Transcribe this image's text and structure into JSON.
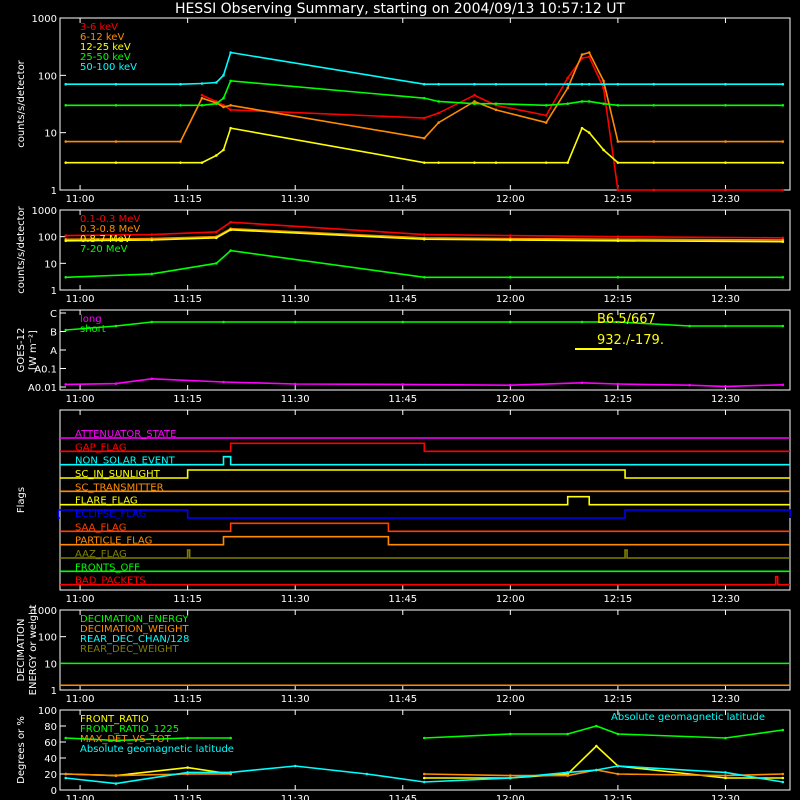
{
  "title": "HESSI Observing Summary, starting on 2004/09/13 10:57:12 UT",
  "time_axis": {
    "tick_labels": [
      "11:00",
      "11:15",
      "11:30",
      "11:45",
      "12:00",
      "12:15",
      "12:30"
    ],
    "range": [
      "10:57:12",
      "12:39:00"
    ]
  },
  "chart_data": [
    {
      "type": "line",
      "panel": "low-energy",
      "ylabel": "counts/s/detector",
      "yscale": "log",
      "ylim": [
        1,
        1000
      ],
      "y_tick_labels": [
        "1",
        "10",
        "100",
        "1000"
      ],
      "x": [
        "10:58",
        "11:05",
        "11:14",
        "11:17",
        "11:19",
        "11:20",
        "11:21",
        "11:48",
        "11:50",
        "11:55",
        "11:58",
        "12:05",
        "12:08",
        "12:10",
        "12:11",
        "12:13",
        "12:15",
        "12:20",
        "12:30",
        "12:38"
      ],
      "series": [
        {
          "name": "3-6 keV",
          "color": "#ff0000",
          "values": [
            null,
            null,
            null,
            45,
            35,
            30,
            25,
            18,
            22,
            45,
            30,
            20,
            90,
            200,
            210,
            60,
            1,
            1,
            1,
            1
          ]
        },
        {
          "name": "6-12 keV",
          "color": "#ff8c00",
          "values": [
            7,
            7,
            7,
            40,
            33,
            28,
            30,
            8,
            15,
            35,
            25,
            15,
            60,
            230,
            250,
            80,
            7,
            7,
            7,
            7
          ]
        },
        {
          "name": "12-25 keV",
          "color": "#ffff00",
          "values": [
            3,
            3,
            3,
            3,
            4,
            5,
            12,
            3,
            3,
            3,
            3,
            3,
            3,
            12,
            10,
            5,
            3,
            3,
            3,
            3
          ]
        },
        {
          "name": "25-50 keV",
          "color": "#00ff00",
          "values": [
            30,
            30,
            30,
            30,
            32,
            40,
            80,
            40,
            35,
            32,
            32,
            30,
            32,
            35,
            35,
            32,
            30,
            30,
            30,
            30
          ]
        },
        {
          "name": "50-100 keV",
          "color": "#00ffff",
          "values": [
            70,
            70,
            70,
            72,
            75,
            100,
            250,
            70,
            70,
            70,
            70,
            70,
            70,
            70,
            70,
            70,
            70,
            70,
            70,
            70
          ]
        }
      ]
    },
    {
      "type": "line",
      "panel": "high-energy",
      "ylabel": "counts/s/detector",
      "yscale": "log",
      "ylim": [
        1,
        1000
      ],
      "y_tick_labels": [
        "1",
        "10",
        "100",
        "1000"
      ],
      "x": [
        "10:58",
        "11:10",
        "11:19",
        "11:21",
        "11:48",
        "12:00",
        "12:15",
        "12:38"
      ],
      "series": [
        {
          "name": "0.1-0.3 MeV",
          "color": "#ff0000",
          "values": [
            110,
            120,
            150,
            350,
            120,
            110,
            100,
            90
          ]
        },
        {
          "name": "0.3-0.8 MeV",
          "color": "#ff8c00",
          "values": [
            80,
            85,
            100,
            200,
            90,
            85,
            80,
            75
          ]
        },
        {
          "name": "0.8-7 MeV",
          "color": "#ffff00",
          "values": [
            70,
            75,
            90,
            180,
            80,
            75,
            70,
            65
          ]
        },
        {
          "name": "7-20 MeV",
          "color": "#00ff00",
          "values": [
            3,
            4,
            10,
            30,
            3,
            3,
            3,
            3
          ]
        }
      ]
    },
    {
      "type": "line",
      "panel": "goes",
      "ylabel": "GOES-12",
      "ylabel2": "[W m⁻²]",
      "y_tick_labels": [
        "A0.01",
        "A0.1",
        "A",
        "B",
        "C"
      ],
      "annotations": [
        "B6.5/667",
        "932./-179."
      ],
      "x": [
        "10:58",
        "11:05",
        "11:10",
        "11:20",
        "11:30",
        "11:45",
        "12:00",
        "12:10",
        "12:15",
        "12:25",
        "12:30",
        "12:38"
      ],
      "series": [
        {
          "name": "long",
          "color": "#ff00ff",
          "values": [
            0.7,
            0.8,
            1.4,
            1.0,
            0.75,
            0.7,
            0.6,
            0.9,
            0.75,
            0.6,
            0.45,
            0.65
          ]
        },
        {
          "name": "short",
          "color": "#00ff00",
          "values": [
            7.5,
            8.0,
            8.5,
            8.5,
            8.5,
            8.5,
            8.5,
            8.5,
            8.5,
            8.0,
            8.0,
            8.0
          ]
        }
      ]
    },
    {
      "type": "line",
      "panel": "flags",
      "ylabel": "Flags",
      "flags": [
        {
          "label": "ATTENUATOR_STATE",
          "color": "#ff00ff",
          "on": []
        },
        {
          "label": "GAP_FLAG",
          "color": "#ff0000",
          "on": [
            [
              "11:21",
              "11:48"
            ]
          ]
        },
        {
          "label": "NON_SOLAR_EVENT",
          "color": "#00ffff",
          "on": [
            [
              "11:20",
              "11:21"
            ]
          ]
        },
        {
          "label": "SC_IN_SUNLIGHT",
          "color": "#ffff00",
          "on": [
            [
              "11:15",
              "12:16"
            ]
          ]
        },
        {
          "label": "SC_TRANSMITTER",
          "color": "#ff8c00",
          "on": []
        },
        {
          "label": "FLARE_FLAG",
          "color": "#ffff00",
          "on": [
            [
              "12:08",
              "12:11"
            ]
          ]
        },
        {
          "label": "ECLIPSE_FLAG",
          "color": "#0000ff",
          "on": [
            [
              "10:57",
              "11:15"
            ],
            [
              "12:16",
              "12:39"
            ]
          ]
        },
        {
          "label": "SAA_FLAG",
          "color": "#ff4000",
          "on": [
            [
              "11:21",
              "11:43"
            ]
          ]
        },
        {
          "label": "PARTICLE_FLAG",
          "color": "#ff8c00",
          "on": [
            [
              "11:20",
              "11:43"
            ]
          ]
        },
        {
          "label": "AAZ_FLAG",
          "color": "#808000",
          "on": [
            [
              "11:15",
              "11:15"
            ],
            [
              "12:16",
              "12:16"
            ]
          ]
        },
        {
          "label": "FRONTS_OFF",
          "color": "#00ff00",
          "on": []
        },
        {
          "label": "BAD_PACKETS",
          "color": "#ff0000",
          "on": [
            [
              "12:37",
              "12:37"
            ]
          ]
        }
      ]
    },
    {
      "type": "line",
      "panel": "decimation",
      "ylabel": "DECIMATION",
      "ylabel2": "ENERGY or weight",
      "yscale": "log",
      "y_tick_labels": [
        "1",
        "10",
        "100",
        "1000"
      ],
      "series": [
        {
          "name": "DECIMATION_ENERGY",
          "color": "#00ff00",
          "values": [
            10,
            10
          ]
        },
        {
          "name": "DECIMATION_WEIGHT",
          "color": "#ff8c00",
          "values": [
            1.5,
            1.5
          ]
        },
        {
          "name": "REAR_DEC_CHAN/128",
          "color": "#00ffff",
          "values": []
        },
        {
          "name": "REAR_DEC_WEIGHT",
          "color": "#808000",
          "values": []
        }
      ]
    },
    {
      "type": "line",
      "panel": "ratios",
      "ylabel": "Degrees or %",
      "ylim": [
        0,
        100
      ],
      "y_tick_labels": [
        "0",
        "20",
        "40",
        "60",
        "80",
        "100"
      ],
      "right_label": "Absolute geomagnetic latitude",
      "x": [
        "10:58",
        "11:05",
        "11:15",
        "11:21",
        "11:30",
        "11:40",
        "11:48",
        "12:00",
        "12:08",
        "12:12",
        "12:15",
        "12:30",
        "12:38"
      ],
      "series": [
        {
          "name": "FRONT_RATIO",
          "color": "#ffff00",
          "values": [
            20,
            18,
            28,
            20,
            null,
            null,
            15,
            15,
            20,
            55,
            30,
            15,
            15
          ]
        },
        {
          "name": "FRONT_RATIO_1225",
          "color": "#00ff00",
          "values": [
            65,
            62,
            65,
            65,
            null,
            null,
            65,
            70,
            70,
            80,
            70,
            65,
            75
          ]
        },
        {
          "name": "MAX_DET_VS_TOT",
          "color": "#ff8c00",
          "values": [
            20,
            18,
            20,
            20,
            null,
            null,
            20,
            18,
            18,
            25,
            20,
            18,
            20
          ]
        },
        {
          "name": "Absolute geomagnetic latitude",
          "color": "#00ffff",
          "values": [
            15,
            8,
            22,
            22,
            30,
            20,
            10,
            15,
            22,
            25,
            30,
            22,
            10
          ]
        }
      ]
    }
  ]
}
